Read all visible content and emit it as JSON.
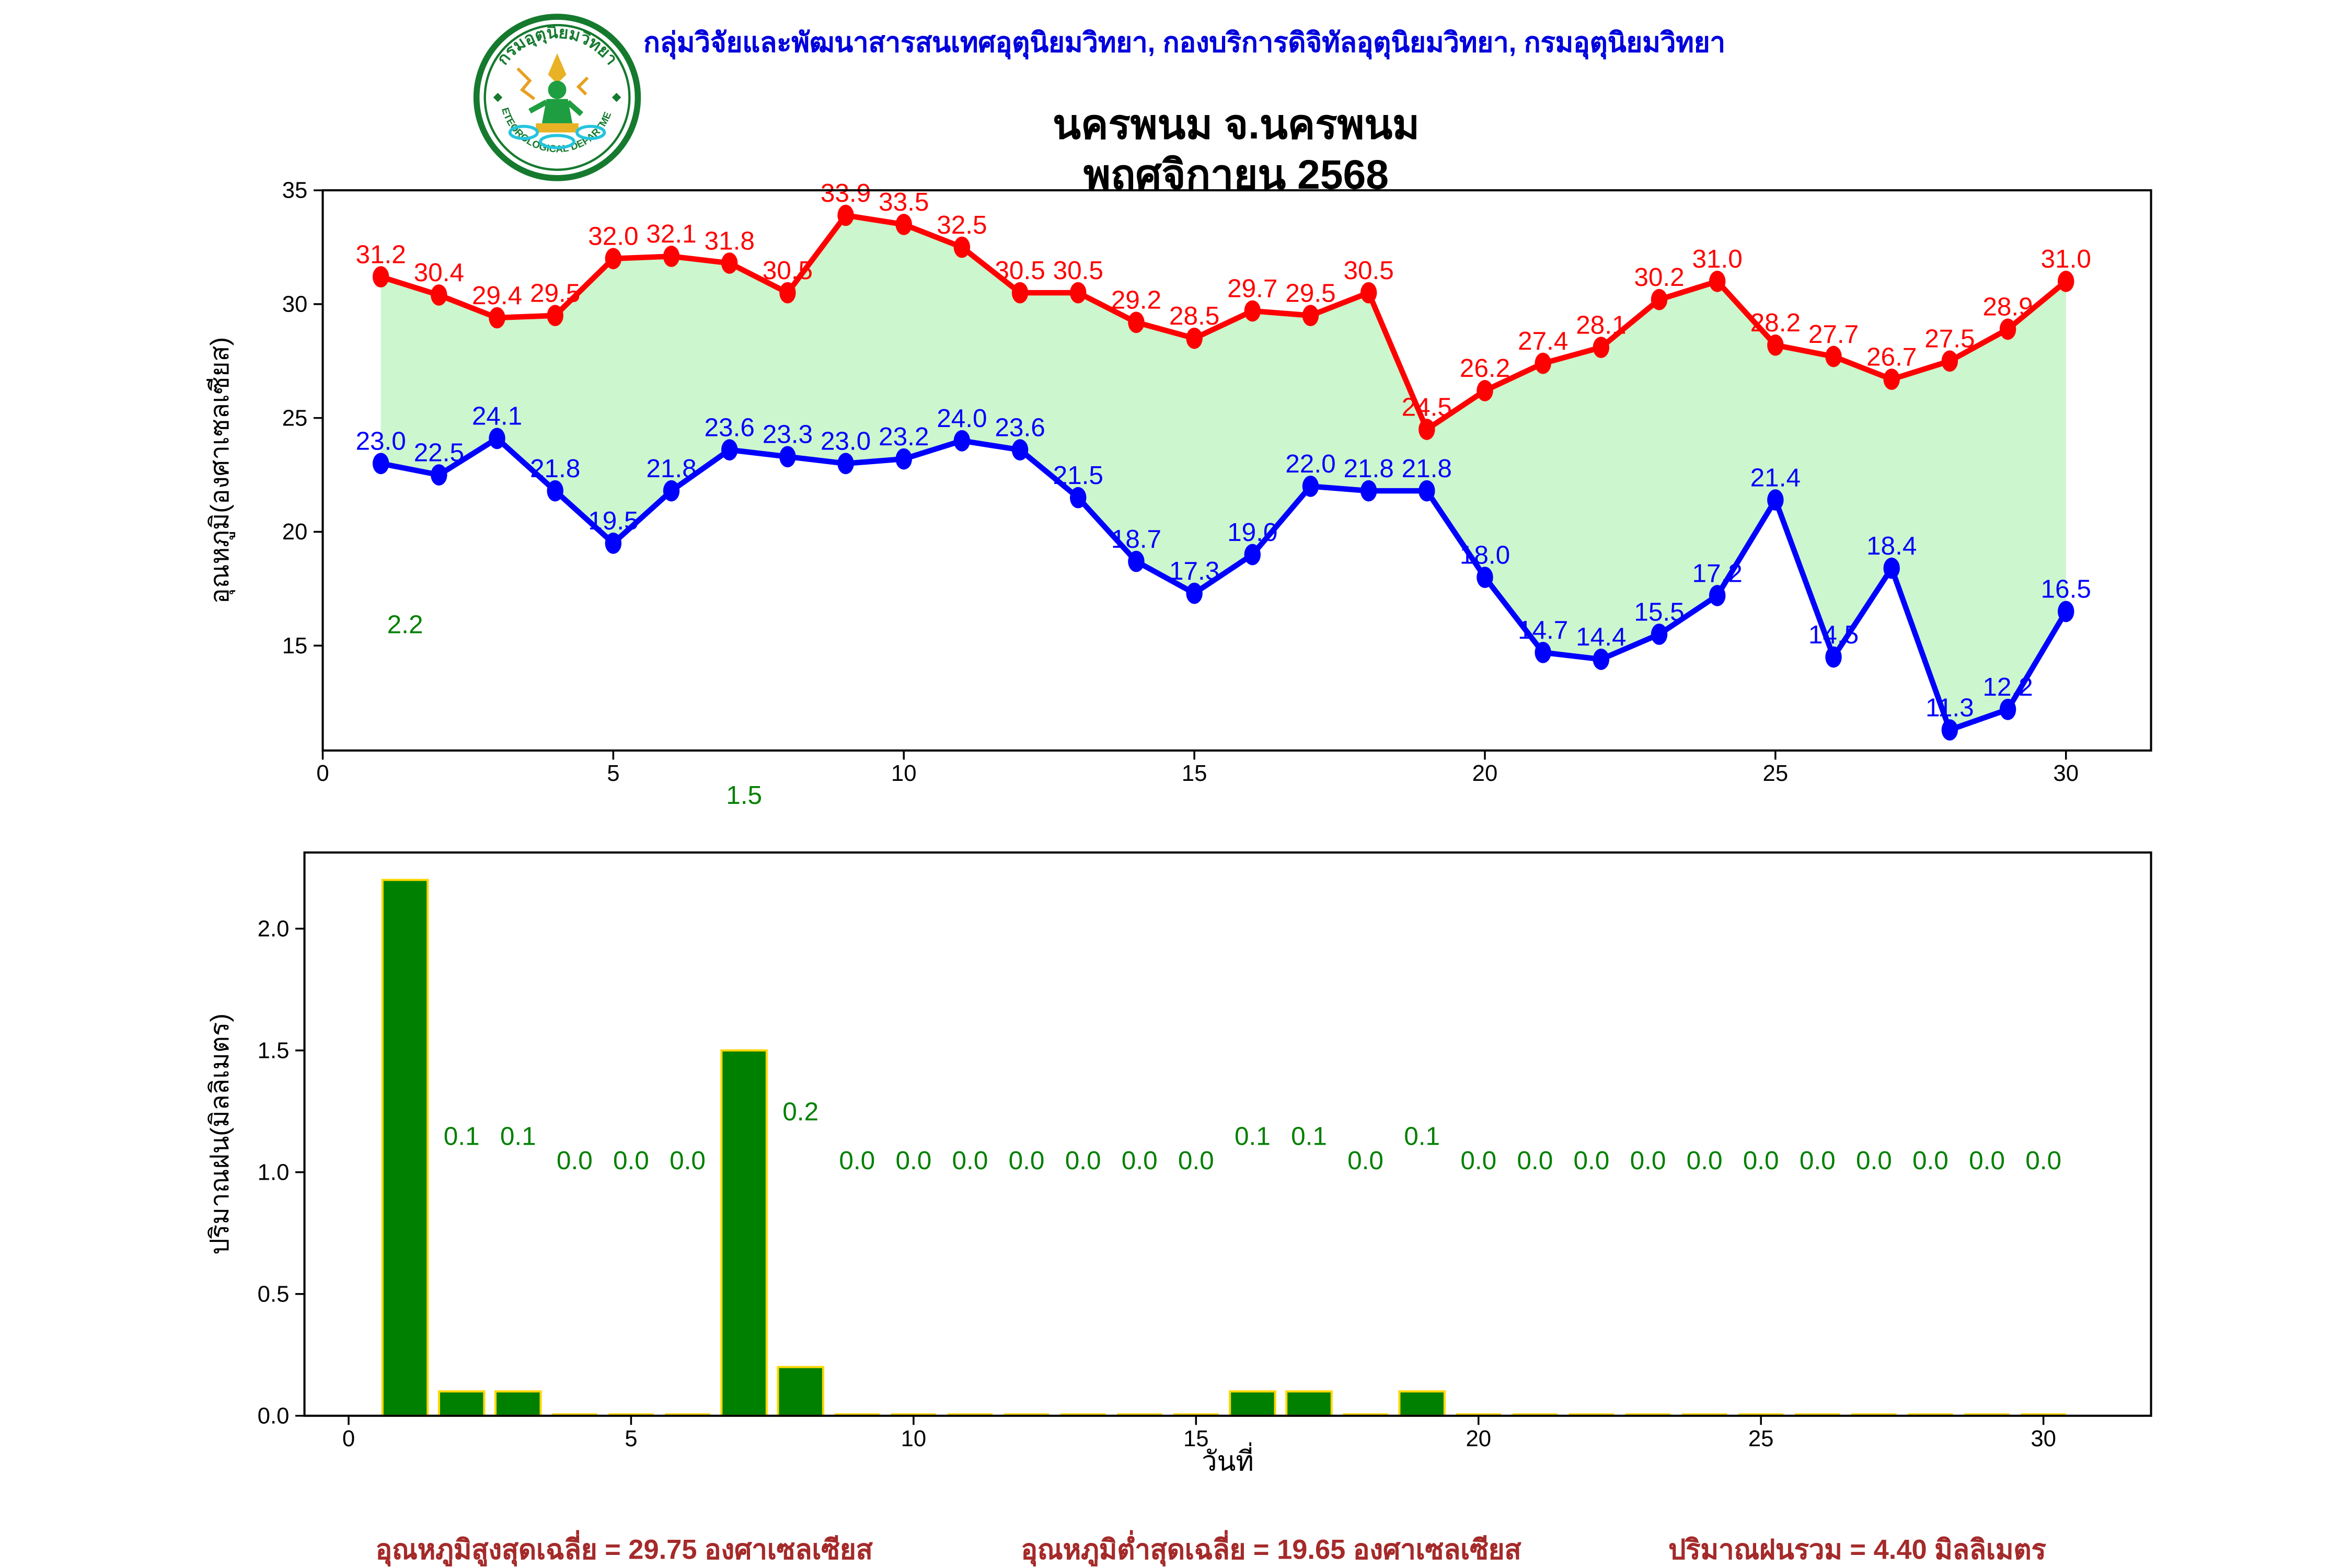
{
  "header": {
    "department_line": "กลุ่มวิจัยและพัฒนาสารสนเทศอุตุนิยมวิทยา, กองบริการดิจิทัลอุตุนิยมวิทยา, กรมอุตุนิยมวิทยา"
  },
  "logo": {
    "top_text": "กรมอุตุนิยมวิทยา",
    "bottom_text": "METEOROLOGICAL DEPARTMENT"
  },
  "title": {
    "line1": "นครพนม จ.นครพนม",
    "line2": "พฤศจิกายน 2568"
  },
  "summary": {
    "max_avg": "อุณหภูมิสูงสุดเฉลี่ย = 29.75 องศาเซลเซียส",
    "min_avg": "อุณหภูมิต่ำสุดเฉลี่ย = 19.65 องศาเซลเซียส",
    "rain_total": "ปริมาณฝนรวม = 4.40 มิลลิเมตร"
  },
  "colors": {
    "max_line": "#ff0000",
    "min_line": "#0000ff",
    "fill_between": "#ccf6cd",
    "bar_fill": "#008000",
    "bar_edge": "#ffd700",
    "rain_label": "#008000",
    "header_text": "#0000dd",
    "summary_text": "#a52a2a",
    "axis": "#000000"
  },
  "chart_data": [
    {
      "type": "line",
      "title": "",
      "xlabel": "",
      "ylabel": "อุณหภูมิ(องศาเซลเซียส)",
      "x": [
        1,
        2,
        3,
        4,
        5,
        6,
        7,
        8,
        9,
        10,
        11,
        12,
        13,
        14,
        15,
        16,
        17,
        18,
        19,
        20,
        21,
        22,
        23,
        24,
        25,
        26,
        27,
        28,
        29,
        30
      ],
      "series": [
        {
          "name": "max_temperature",
          "color": "#ff0000",
          "values": [
            31.2,
            30.4,
            29.4,
            29.5,
            32.0,
            32.1,
            31.8,
            30.5,
            33.9,
            33.5,
            32.5,
            30.5,
            30.5,
            29.2,
            28.5,
            29.7,
            29.5,
            30.5,
            24.5,
            26.2,
            27.4,
            28.1,
            30.2,
            31.0,
            28.2,
            27.7,
            26.7,
            27.5,
            28.9,
            31.0
          ]
        },
        {
          "name": "min_temperature",
          "color": "#0000ff",
          "values": [
            23.0,
            22.5,
            24.1,
            21.8,
            19.5,
            21.8,
            23.6,
            23.3,
            23.0,
            23.2,
            24.0,
            23.6,
            21.5,
            18.7,
            17.3,
            19.0,
            22.0,
            21.8,
            21.8,
            18.0,
            14.7,
            14.4,
            15.5,
            17.2,
            21.4,
            14.5,
            18.4,
            11.3,
            12.2,
            16.5
          ]
        }
      ],
      "fill_between": true,
      "xticks": [
        0,
        5,
        10,
        15,
        20,
        25,
        30
      ],
      "yticks": [
        15,
        20,
        25,
        30,
        35
      ],
      "xlim": [
        0,
        31.47
      ],
      "ylim": [
        10.4,
        35
      ],
      "grid": false,
      "legend": "none"
    },
    {
      "type": "bar",
      "title": "",
      "xlabel": "วันที่",
      "ylabel": "ปริมาณฝน(มิลลิเมตร)",
      "categories": [
        1,
        2,
        3,
        4,
        5,
        6,
        7,
        8,
        9,
        10,
        11,
        12,
        13,
        14,
        15,
        16,
        17,
        18,
        19,
        20,
        21,
        22,
        23,
        24,
        25,
        26,
        27,
        28,
        29,
        30
      ],
      "values": [
        2.2,
        0.1,
        0.1,
        0.0,
        0.0,
        0.0,
        1.5,
        0.2,
        0.0,
        0.0,
        0.0,
        0.0,
        0.0,
        0.0,
        0.0,
        0.1,
        0.1,
        0.0,
        0.1,
        0.0,
        0.0,
        0.0,
        0.0,
        0.0,
        0.0,
        0.0,
        0.0,
        0.0,
        0.0,
        0.0
      ],
      "xticks": [
        0,
        5,
        10,
        15,
        20,
        25,
        30
      ],
      "yticks": [
        0.0,
        0.5,
        1.0,
        1.5,
        2.0
      ],
      "xlim": [
        -0.8,
        31.9
      ],
      "ylim": [
        0,
        2.31
      ],
      "grid": false,
      "legend": "none"
    }
  ]
}
